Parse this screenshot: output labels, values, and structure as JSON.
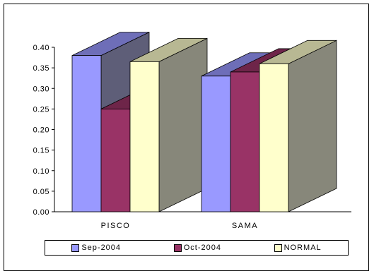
{
  "chart_data": {
    "type": "bar",
    "categories": [
      "PISCO",
      "SAMA"
    ],
    "series": [
      {
        "name": "Sep-2004",
        "values": [
          0.38,
          0.33
        ],
        "color": "#9999FF"
      },
      {
        "name": "Oct-2004",
        "values": [
          0.25,
          0.34
        ],
        "color": "#993366"
      },
      {
        "name": "NORMAL",
        "values": [
          0.365,
          0.36
        ],
        "color": "#FFFFCC"
      }
    ],
    "yticks": [
      "0.00",
      "0.05",
      "0.10",
      "0.15",
      "0.20",
      "0.25",
      "0.30",
      "0.35",
      "0.40"
    ],
    "ylim": [
      0,
      0.4
    ],
    "legend_position": "bottom",
    "title": "",
    "xlabel": "",
    "ylabel": ""
  }
}
